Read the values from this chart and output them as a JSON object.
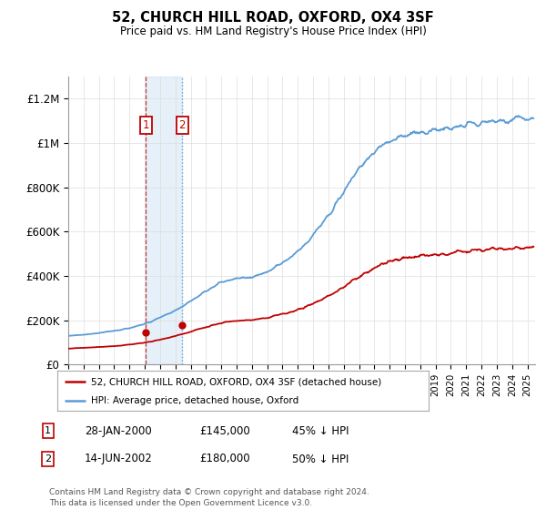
{
  "title": "52, CHURCH HILL ROAD, OXFORD, OX4 3SF",
  "subtitle": "Price paid vs. HM Land Registry's House Price Index (HPI)",
  "ylabel_ticks": [
    "£0",
    "£200K",
    "£400K",
    "£600K",
    "£800K",
    "£1M",
    "£1.2M"
  ],
  "ylim": [
    0,
    1300000
  ],
  "xlim_start": 1995.0,
  "xlim_end": 2025.5,
  "hpi_color": "#5b9bd5",
  "price_color": "#c00000",
  "sale1_date": 2000.08,
  "sale1_price": 145000,
  "sale2_date": 2002.45,
  "sale2_price": 180000,
  "legend_line1": "52, CHURCH HILL ROAD, OXFORD, OX4 3SF (detached house)",
  "legend_line2": "HPI: Average price, detached house, Oxford",
  "table_row1": [
    "1",
    "28-JAN-2000",
    "£145,000",
    "45% ↓ HPI"
  ],
  "table_row2": [
    "2",
    "14-JUN-2002",
    "£180,000",
    "50% ↓ HPI"
  ],
  "footnote": "Contains HM Land Registry data © Crown copyright and database right 2024.\nThis data is licensed under the Open Government Licence v3.0.",
  "bg_color": "#ffffff",
  "grid_color": "#dddddd",
  "hpi_base_values": [
    130000,
    133000,
    136000,
    139000,
    143000,
    147000,
    152000,
    158000,
    165000,
    174000,
    184000,
    196000,
    210000,
    226000,
    244000,
    264000,
    285000,
    307000,
    330000,
    352000,
    370000,
    382000,
    388000,
    390000,
    395000,
    405000,
    418000,
    435000,
    455000,
    478000,
    505000,
    538000,
    575000,
    618000,
    665000,
    715000,
    768000,
    820000,
    870000,
    915000,
    952000,
    982000,
    1005000,
    1020000,
    1030000,
    1038000,
    1042000,
    1048000,
    1055000,
    1062000,
    1068000,
    1074000,
    1080000,
    1085000,
    1090000,
    1095000,
    1098000,
    1100000,
    1102000,
    1104000,
    1105000,
    1106000
  ],
  "red_base_values": [
    72000,
    74000,
    76000,
    78000,
    80000,
    82000,
    84000,
    87000,
    90000,
    94000,
    99000,
    105000,
    112000,
    120000,
    129000,
    138000,
    148000,
    158000,
    168000,
    178000,
    186000,
    192000,
    196000,
    198000,
    200000,
    205000,
    211000,
    218000,
    226000,
    235000,
    245000,
    258000,
    272000,
    288000,
    306000,
    326000,
    348000,
    370000,
    392000,
    412000,
    430000,
    446000,
    460000,
    470000,
    478000,
    484000,
    488000,
    492000,
    496000,
    500000,
    504000,
    508000,
    512000,
    515000,
    518000,
    521000,
    523000,
    525000,
    527000,
    529000,
    530000,
    531000
  ]
}
